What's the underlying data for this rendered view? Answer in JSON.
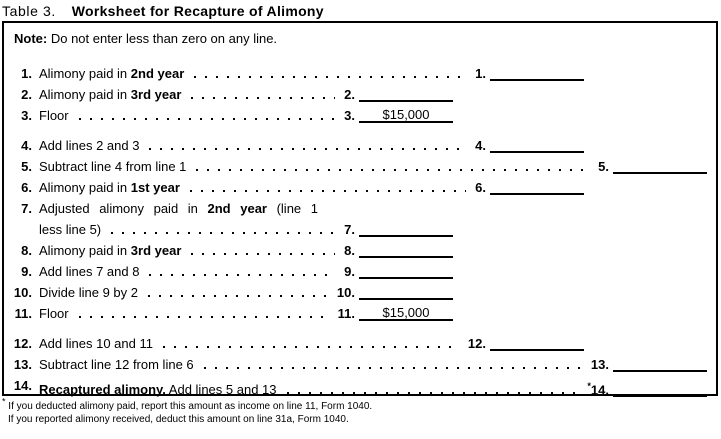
{
  "title": {
    "prefix": "Table 3.",
    "main": "Worksheet for Recapture of Alimony"
  },
  "note": {
    "label": "Note:",
    "text": "Do not enter less than zero on any line."
  },
  "rows": [
    {
      "num": "1.",
      "col": "B",
      "segments": [
        {
          "text": "Alimony paid in ",
          "bold": false
        },
        {
          "text": "2nd year",
          "bold": true
        }
      ],
      "entry_num": "1.",
      "star": "",
      "value": "",
      "gap_before": false
    },
    {
      "num": "2.",
      "col": "A",
      "segments": [
        {
          "text": "Alimony paid in ",
          "bold": false
        },
        {
          "text": "3rd year",
          "bold": true
        }
      ],
      "entry_num": "2.",
      "star": "",
      "value": "",
      "gap_before": false
    },
    {
      "num": "3.",
      "col": "A",
      "segments": [
        {
          "text": "Floor",
          "bold": false
        }
      ],
      "entry_num": "3.",
      "star": "",
      "value": "$15,000",
      "gap_before": false
    },
    {
      "num": "4.",
      "col": "B",
      "segments": [
        {
          "text": "Add lines 2 and 3",
          "bold": false
        }
      ],
      "entry_num": "4.",
      "star": "",
      "value": "",
      "gap_before": true
    },
    {
      "num": "5.",
      "col": "C",
      "segments": [
        {
          "text": "Subtract line 4 from line 1",
          "bold": false
        }
      ],
      "entry_num": "5.",
      "star": "",
      "value": "",
      "gap_before": false
    },
    {
      "num": "6.",
      "col": "B",
      "segments": [
        {
          "text": "Alimony paid in ",
          "bold": false
        },
        {
          "text": "1st year",
          "bold": true
        }
      ],
      "entry_num": "6.",
      "star": "",
      "value": "",
      "gap_before": false
    },
    {
      "num": "7.",
      "col": "A",
      "line1_segments": [
        {
          "text": "Adjusted alimony paid in ",
          "bold": false
        },
        {
          "text": "2nd year",
          "bold": true
        },
        {
          "text": " (line 1",
          "bold": false
        }
      ],
      "segments": [
        {
          "text": "less line 5)",
          "bold": false
        }
      ],
      "entry_num": "7.",
      "star": "",
      "value": "",
      "gap_before": false
    },
    {
      "num": "8.",
      "col": "A",
      "segments": [
        {
          "text": "Alimony paid in ",
          "bold": false
        },
        {
          "text": "3rd year",
          "bold": true
        }
      ],
      "entry_num": "8.",
      "star": "",
      "value": "",
      "gap_before": false
    },
    {
      "num": "9.",
      "col": "A",
      "segments": [
        {
          "text": "Add lines 7 and 8",
          "bold": false
        }
      ],
      "entry_num": "9.",
      "star": "",
      "value": "",
      "gap_before": false
    },
    {
      "num": "10.",
      "col": "A",
      "segments": [
        {
          "text": "Divide line 9 by 2",
          "bold": false
        }
      ],
      "entry_num": "10.",
      "star": "",
      "value": "",
      "gap_before": false
    },
    {
      "num": "11.",
      "col": "A",
      "segments": [
        {
          "text": "Floor",
          "bold": false
        }
      ],
      "entry_num": "11.",
      "star": "",
      "value": "$15,000",
      "gap_before": false
    },
    {
      "num": "12.",
      "col": "B",
      "segments": [
        {
          "text": "Add lines 10 and 11",
          "bold": false
        }
      ],
      "entry_num": "12.",
      "star": "",
      "value": "",
      "gap_before": true
    },
    {
      "num": "13.",
      "col": "C",
      "segments": [
        {
          "text": "Subtract line 12 from line 6",
          "bold": false
        }
      ],
      "entry_num": "13.",
      "star": "",
      "value": "",
      "gap_before": false
    },
    {
      "num": "14.",
      "col": "C",
      "segments": [
        {
          "text": "Recaptured alimony.",
          "bold": true
        },
        {
          "text": " Add lines 5 and 13",
          "bold": false
        }
      ],
      "entry_num": "14.",
      "star": "*",
      "value": "",
      "gap_before": false
    }
  ],
  "footnote": {
    "mark": "*",
    "line1": "If you deducted alimony paid, report this amount as income on line 11, Form 1040.",
    "line2": "If you reported alimony received, deduct this amount on line 31a, Form 1040."
  },
  "colors": {
    "ink": "#000000",
    "paper": "#ffffff"
  }
}
